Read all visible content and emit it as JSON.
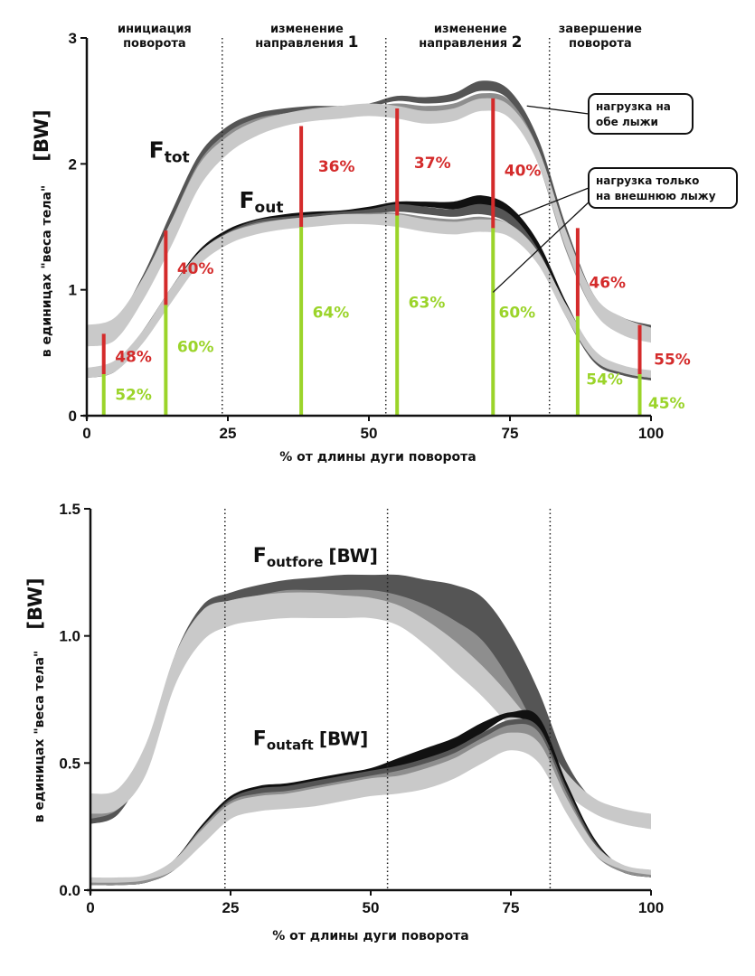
{
  "chart_data": [
    {
      "type": "area",
      "ylabel": "в единицах \"веса тела\"",
      "unit_label": "[BW]",
      "xlabel": "% от длины дуги поворота",
      "xlim": [
        0,
        100
      ],
      "ylim": [
        0,
        3
      ],
      "x_ticks": [
        "0",
        "25",
        "50",
        "75",
        "100"
      ],
      "y_ticks": [
        "0",
        "1",
        "2",
        "3"
      ],
      "phase_boundaries": [
        24,
        53,
        82
      ],
      "phases": [
        {
          "line1": "инициация",
          "line2": "поворота",
          "x": 12
        },
        {
          "line1": "изменение",
          "line2": "направления 1",
          "x": 39
        },
        {
          "line1": "изменение",
          "line2": "направления 2",
          "x": 68
        },
        {
          "line1": "завершение",
          "line2": "поворота",
          "x": 91
        }
      ],
      "x": [
        0,
        5,
        10,
        15,
        20,
        25,
        30,
        35,
        40,
        45,
        50,
        55,
        60,
        65,
        70,
        75,
        80,
        85,
        90,
        95,
        100
      ],
      "series": [
        {
          "name": "Ftot",
          "bands": [
            {
              "color": "#555555",
              "lower": [
                0.6,
                0.65,
                1.0,
                1.45,
                1.95,
                2.22,
                2.35,
                2.4,
                2.42,
                2.42,
                2.45,
                2.5,
                2.48,
                2.5,
                2.58,
                2.5,
                2.05,
                1.35,
                0.85,
                0.7,
                0.65
              ],
              "upper": [
                0.68,
                0.75,
                1.12,
                1.62,
                2.08,
                2.3,
                2.4,
                2.44,
                2.46,
                2.46,
                2.48,
                2.54,
                2.53,
                2.56,
                2.66,
                2.58,
                2.2,
                1.5,
                0.95,
                0.78,
                0.72
              ]
            },
            {
              "color": "#8e8e8e",
              "lower": [
                0.58,
                0.62,
                0.96,
                1.4,
                1.88,
                2.15,
                2.3,
                2.36,
                2.38,
                2.38,
                2.4,
                2.42,
                2.4,
                2.42,
                2.5,
                2.42,
                2.0,
                1.3,
                0.82,
                0.66,
                0.6
              ],
              "upper": [
                0.66,
                0.72,
                1.06,
                1.55,
                2.02,
                2.25,
                2.36,
                2.4,
                2.42,
                2.42,
                2.45,
                2.48,
                2.46,
                2.48,
                2.56,
                2.5,
                2.12,
                1.42,
                0.9,
                0.74,
                0.68
              ]
            },
            {
              "color": "#c9c9c9",
              "lower": [
                0.55,
                0.6,
                0.92,
                1.35,
                1.82,
                2.08,
                2.22,
                2.3,
                2.34,
                2.36,
                2.38,
                2.36,
                2.32,
                2.34,
                2.42,
                2.36,
                2.0,
                1.32,
                0.82,
                0.64,
                0.58
              ],
              "upper": [
                0.72,
                0.78,
                1.1,
                1.55,
                2.0,
                2.22,
                2.34,
                2.4,
                2.44,
                2.46,
                2.48,
                2.46,
                2.42,
                2.44,
                2.52,
                2.46,
                2.12,
                1.46,
                0.95,
                0.78,
                0.7
              ]
            }
          ],
          "label_x": 11,
          "label_y": 2.05
        },
        {
          "name": "Fout",
          "bands": [
            {
              "color": "#111111",
              "lower": [
                0.3,
                0.36,
                0.62,
                0.95,
                1.25,
                1.42,
                1.52,
                1.56,
                1.58,
                1.6,
                1.62,
                1.66,
                1.66,
                1.64,
                1.66,
                1.58,
                1.3,
                0.82,
                0.45,
                0.34,
                0.3
              ],
              "upper": [
                0.34,
                0.4,
                0.68,
                1.02,
                1.32,
                1.48,
                1.56,
                1.6,
                1.62,
                1.63,
                1.66,
                1.7,
                1.7,
                1.7,
                1.75,
                1.66,
                1.38,
                0.9,
                0.5,
                0.38,
                0.34
              ]
            },
            {
              "color": "#555555",
              "lower": [
                0.3,
                0.35,
                0.6,
                0.92,
                1.22,
                1.4,
                1.5,
                1.54,
                1.56,
                1.58,
                1.6,
                1.62,
                1.6,
                1.58,
                1.6,
                1.52,
                1.25,
                0.78,
                0.42,
                0.32,
                0.28
              ],
              "upper": [
                0.34,
                0.4,
                0.66,
                1.0,
                1.3,
                1.46,
                1.55,
                1.58,
                1.6,
                1.62,
                1.64,
                1.68,
                1.66,
                1.64,
                1.68,
                1.6,
                1.32,
                0.85,
                0.47,
                0.36,
                0.32
              ]
            },
            {
              "color": "#8e8e8e",
              "lower": [
                0.32,
                0.36,
                0.6,
                0.92,
                1.22,
                1.38,
                1.47,
                1.51,
                1.53,
                1.55,
                1.56,
                1.56,
                1.53,
                1.5,
                1.52,
                1.46,
                1.22,
                0.78,
                0.44,
                0.34,
                0.3
              ],
              "upper": [
                0.36,
                0.42,
                0.66,
                1.0,
                1.3,
                1.45,
                1.53,
                1.56,
                1.58,
                1.6,
                1.61,
                1.61,
                1.58,
                1.56,
                1.58,
                1.52,
                1.3,
                0.86,
                0.5,
                0.38,
                0.34
              ]
            },
            {
              "color": "#c9c9c9",
              "lower": [
                0.3,
                0.35,
                0.58,
                0.9,
                1.2,
                1.36,
                1.44,
                1.48,
                1.5,
                1.52,
                1.52,
                1.5,
                1.46,
                1.44,
                1.46,
                1.42,
                1.2,
                0.78,
                0.44,
                0.34,
                0.3
              ],
              "upper": [
                0.38,
                0.44,
                0.68,
                1.02,
                1.3,
                1.45,
                1.52,
                1.56,
                1.58,
                1.6,
                1.6,
                1.6,
                1.56,
                1.54,
                1.56,
                1.52,
                1.3,
                0.88,
                0.52,
                0.4,
                0.36
              ]
            }
          ],
          "label_x": 27,
          "label_y": 1.65
        }
      ],
      "red_bars": [
        {
          "x": 3,
          "y0": 0.33,
          "y1": 0.65,
          "label": "48%",
          "lx": 5,
          "ly": 0.47
        },
        {
          "x": 14,
          "y0": 0.88,
          "y1": 1.47,
          "label": "40%",
          "lx": 16,
          "ly": 1.17
        },
        {
          "x": 38,
          "y0": 1.5,
          "y1": 2.3,
          "label": "36%",
          "lx": 41,
          "ly": 1.98
        },
        {
          "x": 55,
          "y0": 1.59,
          "y1": 2.44,
          "label": "37%",
          "lx": 58,
          "ly": 2.01
        },
        {
          "x": 72,
          "y0": 1.49,
          "y1": 2.52,
          "label": "40%",
          "lx": 74,
          "ly": 1.95
        },
        {
          "x": 87,
          "y0": 0.79,
          "y1": 1.49,
          "label": "46%",
          "lx": 89,
          "ly": 1.06
        },
        {
          "x": 98,
          "y0": 0.33,
          "y1": 0.72,
          "label": "55%",
          "lx": 100.5,
          "ly": 0.45
        }
      ],
      "green_bars": [
        {
          "x": 3,
          "y0": 0,
          "y1": 0.33,
          "label": "52%",
          "lx": 5,
          "ly": 0.17
        },
        {
          "x": 14,
          "y0": 0,
          "y1": 0.88,
          "label": "60%",
          "lx": 16,
          "ly": 0.55
        },
        {
          "x": 38,
          "y0": 0,
          "y1": 1.5,
          "label": "64%",
          "lx": 40,
          "ly": 0.82
        },
        {
          "x": 55,
          "y0": 0,
          "y1": 1.59,
          "label": "63%",
          "lx": 57,
          "ly": 0.9
        },
        {
          "x": 72,
          "y0": 0,
          "y1": 1.49,
          "label": "60%",
          "lx": 73,
          "ly": 0.82
        },
        {
          "x": 87,
          "y0": 0,
          "y1": 0.79,
          "label": "54%",
          "lx": 88.5,
          "ly": 0.29
        },
        {
          "x": 98,
          "y0": 0,
          "y1": 0.33,
          "label": "45%",
          "lx": 99.5,
          "ly": 0.1
        }
      ],
      "callouts": [
        {
          "line1": "нагрузка на",
          "line2": "обе   лыжи",
          "pointer_x": 78,
          "pointer_y": 2.46
        },
        {
          "line1": "нагрузка  только",
          "line2": "на внешнюю лыжу",
          "pointer_x": 76,
          "pointer_y": 1.58,
          "pointer2_x": 72,
          "pointer2_y": 0.98
        }
      ]
    },
    {
      "type": "area",
      "ylabel": "в единицах \"веса тела\"",
      "unit_label": "[BW]",
      "xlabel": "% от длины дуги поворота",
      "xlim": [
        0,
        100
      ],
      "ylim": [
        0,
        1.5
      ],
      "x_ticks": [
        "0",
        "25",
        "50",
        "75",
        "100"
      ],
      "y_ticks": [
        "0.0",
        "0.5",
        "1.0",
        "1.5"
      ],
      "phase_boundaries": [
        24,
        53,
        82
      ],
      "x": [
        0,
        5,
        10,
        15,
        20,
        25,
        30,
        35,
        40,
        45,
        50,
        55,
        60,
        65,
        70,
        75,
        80,
        85,
        90,
        95,
        100
      ],
      "series": [
        {
          "name": "Foutfore [BW]",
          "bands": [
            {
              "color": "#555555",
              "lower": [
                0.26,
                0.3,
                0.5,
                0.85,
                1.05,
                1.12,
                1.15,
                1.16,
                1.16,
                1.16,
                1.16,
                1.15,
                1.1,
                1.02,
                0.9,
                0.74,
                0.55,
                0.4,
                0.32,
                0.28,
                0.27
              ],
              "upper": [
                0.3,
                0.34,
                0.56,
                0.92,
                1.12,
                1.17,
                1.2,
                1.22,
                1.23,
                1.24,
                1.24,
                1.24,
                1.22,
                1.2,
                1.15,
                1.0,
                0.78,
                0.5,
                0.35,
                0.31,
                0.3
              ]
            },
            {
              "color": "#8e8e8e",
              "lower": [
                0.28,
                0.32,
                0.48,
                0.82,
                1.02,
                1.08,
                1.1,
                1.1,
                1.1,
                1.1,
                1.1,
                1.08,
                1.0,
                0.9,
                0.8,
                0.68,
                0.55,
                0.4,
                0.32,
                0.28,
                0.26
              ],
              "upper": [
                0.32,
                0.36,
                0.56,
                0.9,
                1.1,
                1.14,
                1.16,
                1.18,
                1.18,
                1.18,
                1.18,
                1.16,
                1.12,
                1.06,
                0.98,
                0.82,
                0.62,
                0.46,
                0.34,
                0.3,
                0.28
              ]
            },
            {
              "color": "#c9c9c9",
              "lower": [
                0.3,
                0.32,
                0.46,
                0.8,
                0.98,
                1.04,
                1.06,
                1.07,
                1.07,
                1.07,
                1.07,
                1.04,
                0.96,
                0.86,
                0.76,
                0.64,
                0.52,
                0.38,
                0.3,
                0.26,
                0.24
              ],
              "upper": [
                0.38,
                0.4,
                0.58,
                0.92,
                1.1,
                1.14,
                1.16,
                1.17,
                1.17,
                1.16,
                1.15,
                1.12,
                1.06,
                0.98,
                0.88,
                0.76,
                0.62,
                0.46,
                0.36,
                0.32,
                0.3
              ]
            }
          ],
          "label_x": 29,
          "label_y": 1.29
        },
        {
          "name": "Foutaft [BW]",
          "bands": [
            {
              "color": "#111111",
              "lower": [
                0.02,
                0.02,
                0.03,
                0.08,
                0.2,
                0.33,
                0.38,
                0.39,
                0.4,
                0.42,
                0.44,
                0.46,
                0.5,
                0.55,
                0.62,
                0.68,
                0.62,
                0.35,
                0.15,
                0.07,
                0.05
              ],
              "upper": [
                0.04,
                0.04,
                0.05,
                0.12,
                0.26,
                0.37,
                0.41,
                0.42,
                0.44,
                0.46,
                0.48,
                0.52,
                0.56,
                0.6,
                0.66,
                0.7,
                0.68,
                0.42,
                0.2,
                0.09,
                0.07
              ]
            },
            {
              "color": "#555555",
              "lower": [
                0.02,
                0.02,
                0.03,
                0.08,
                0.2,
                0.32,
                0.36,
                0.37,
                0.38,
                0.4,
                0.42,
                0.44,
                0.46,
                0.5,
                0.56,
                0.62,
                0.58,
                0.32,
                0.14,
                0.07,
                0.05
              ],
              "upper": [
                0.04,
                0.04,
                0.05,
                0.12,
                0.25,
                0.36,
                0.4,
                0.41,
                0.43,
                0.45,
                0.47,
                0.49,
                0.52,
                0.56,
                0.62,
                0.67,
                0.64,
                0.4,
                0.19,
                0.09,
                0.07
              ]
            },
            {
              "color": "#8e8e8e",
              "lower": [
                0.02,
                0.02,
                0.03,
                0.08,
                0.19,
                0.3,
                0.34,
                0.35,
                0.36,
                0.38,
                0.4,
                0.42,
                0.44,
                0.48,
                0.54,
                0.6,
                0.56,
                0.32,
                0.14,
                0.07,
                0.05
              ],
              "upper": [
                0.04,
                0.04,
                0.05,
                0.12,
                0.25,
                0.35,
                0.38,
                0.39,
                0.41,
                0.43,
                0.45,
                0.47,
                0.5,
                0.54,
                0.6,
                0.65,
                0.62,
                0.38,
                0.18,
                0.09,
                0.07
              ]
            },
            {
              "color": "#c9c9c9",
              "lower": [
                0.03,
                0.03,
                0.04,
                0.08,
                0.18,
                0.28,
                0.31,
                0.32,
                0.33,
                0.35,
                0.37,
                0.38,
                0.4,
                0.44,
                0.5,
                0.55,
                0.5,
                0.3,
                0.14,
                0.08,
                0.06
              ],
              "upper": [
                0.05,
                0.05,
                0.06,
                0.12,
                0.24,
                0.34,
                0.37,
                0.38,
                0.4,
                0.42,
                0.44,
                0.45,
                0.48,
                0.52,
                0.58,
                0.62,
                0.58,
                0.36,
                0.18,
                0.1,
                0.08
              ]
            }
          ],
          "label_x": 29,
          "label_y": 0.57
        }
      ]
    }
  ]
}
